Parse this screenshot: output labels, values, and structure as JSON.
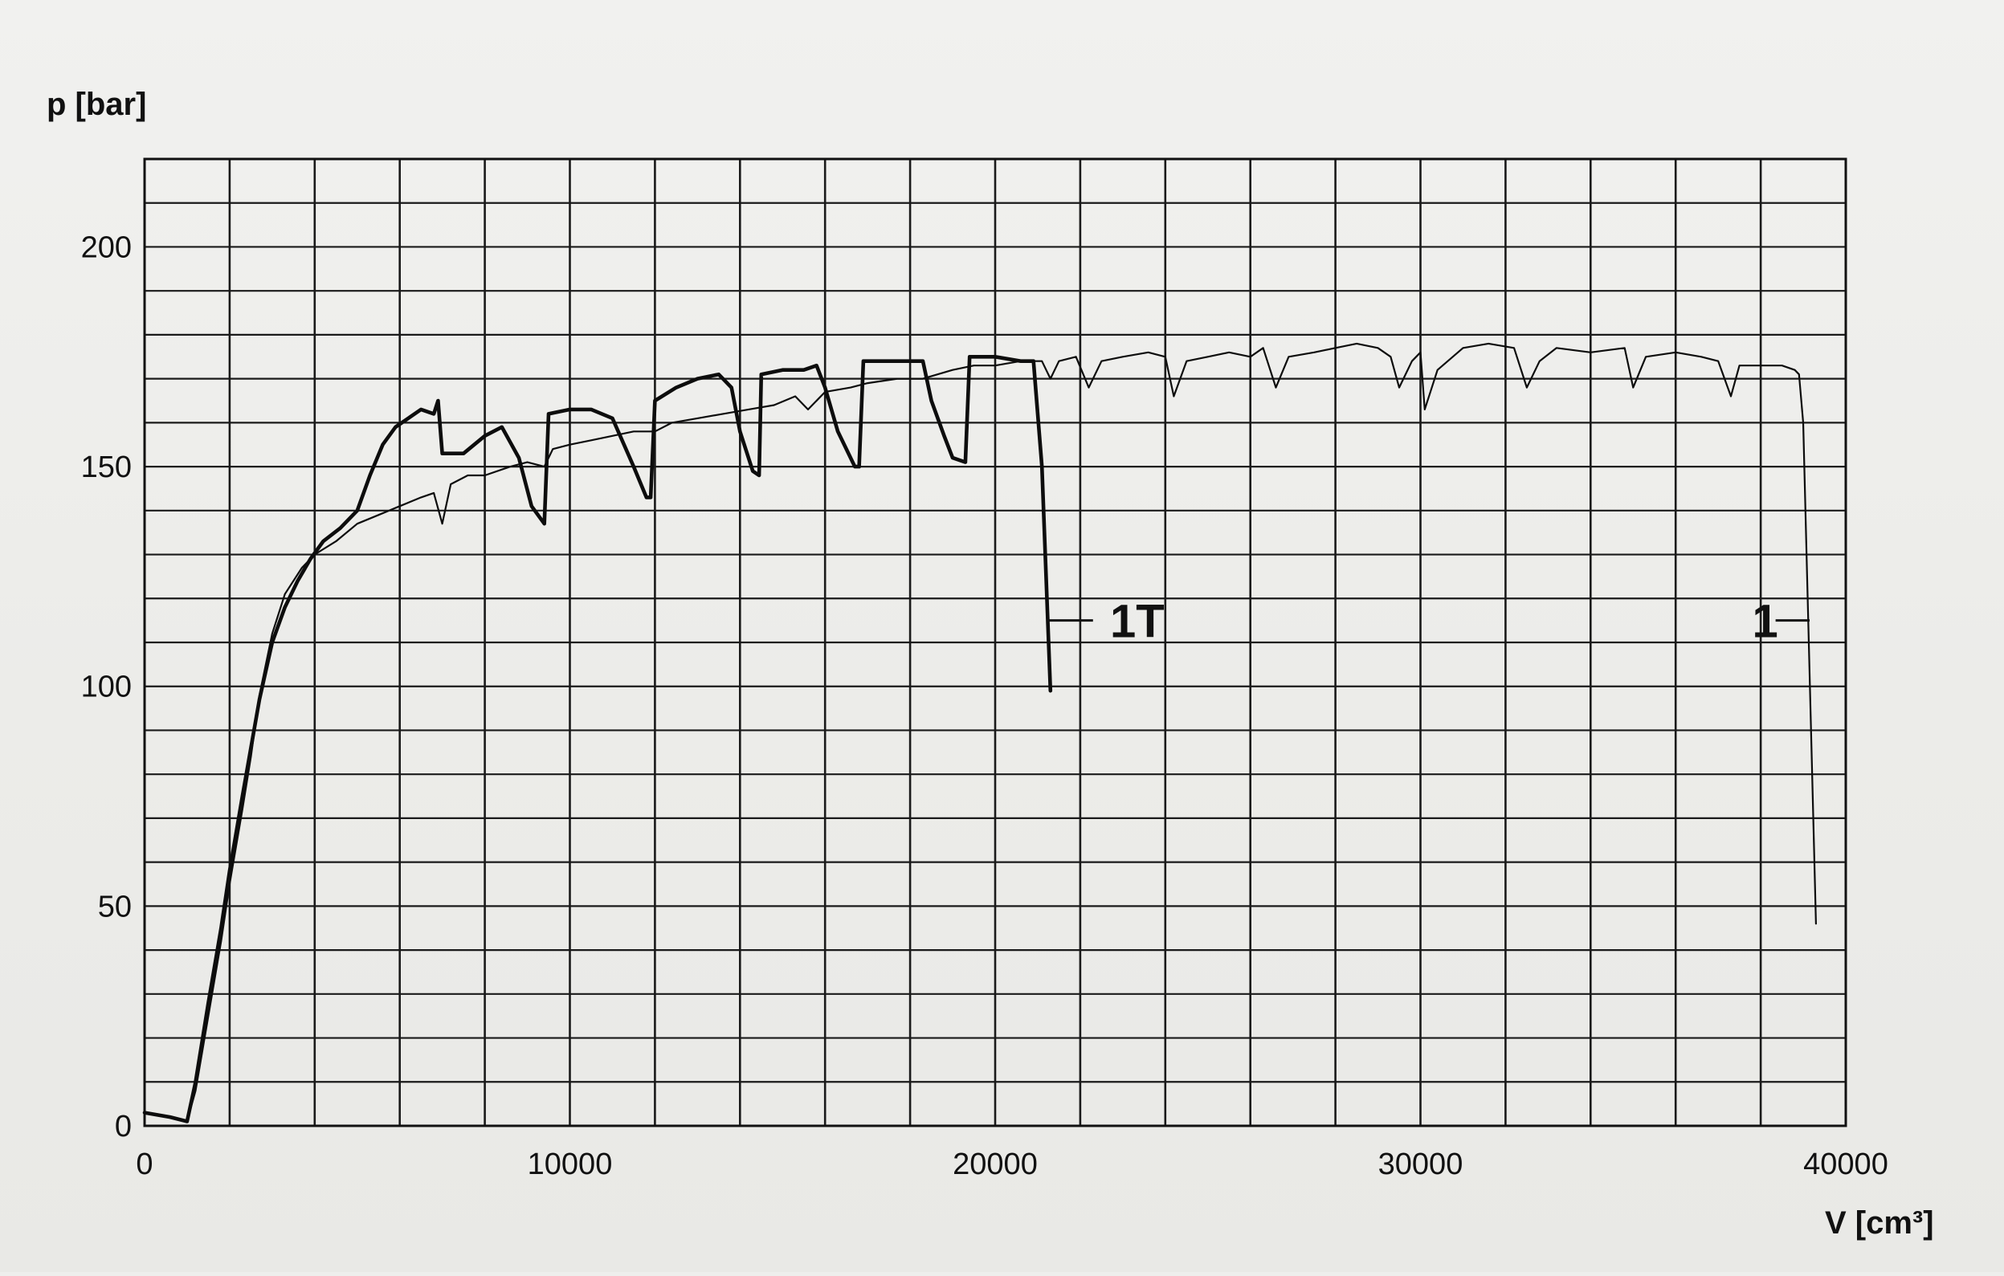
{
  "chart_data": {
    "type": "line",
    "title": "",
    "xlabel": "V [cm³]",
    "ylabel": "p [bar]",
    "xlim": [
      0,
      40000
    ],
    "ylim": [
      0,
      220
    ],
    "xticks": [
      0,
      10000,
      20000,
      30000,
      40000
    ],
    "yticks": [
      0,
      50,
      100,
      150,
      200
    ],
    "grid": true,
    "series": [
      {
        "name": "1T",
        "line_style": "thick",
        "points": [
          [
            0,
            3
          ],
          [
            600,
            2
          ],
          [
            1000,
            1
          ],
          [
            1200,
            10
          ],
          [
            1500,
            28
          ],
          [
            1800,
            45
          ],
          [
            2000,
            58
          ],
          [
            2300,
            75
          ],
          [
            2500,
            86
          ],
          [
            2700,
            97
          ],
          [
            3000,
            110
          ],
          [
            3300,
            118
          ],
          [
            3600,
            124
          ],
          [
            3900,
            129
          ],
          [
            4200,
            133
          ],
          [
            4600,
            136
          ],
          [
            5000,
            140
          ],
          [
            5300,
            148
          ],
          [
            5600,
            155
          ],
          [
            5900,
            159
          ],
          [
            6200,
            161
          ],
          [
            6500,
            163
          ],
          [
            6800,
            162
          ],
          [
            6900,
            165
          ],
          [
            7000,
            153
          ],
          [
            7500,
            153
          ],
          [
            8000,
            157
          ],
          [
            8400,
            159
          ],
          [
            8800,
            152
          ],
          [
            9100,
            141
          ],
          [
            9400,
            137
          ],
          [
            9500,
            162
          ],
          [
            10000,
            163
          ],
          [
            10500,
            163
          ],
          [
            11000,
            161
          ],
          [
            11500,
            150
          ],
          [
            11800,
            143
          ],
          [
            11900,
            143
          ],
          [
            12000,
            165
          ],
          [
            12500,
            168
          ],
          [
            13000,
            170
          ],
          [
            13500,
            171
          ],
          [
            13800,
            168
          ],
          [
            14000,
            158
          ],
          [
            14300,
            149
          ],
          [
            14450,
            148
          ],
          [
            14500,
            171
          ],
          [
            15000,
            172
          ],
          [
            15500,
            172
          ],
          [
            15800,
            173
          ],
          [
            16000,
            168
          ],
          [
            16300,
            158
          ],
          [
            16700,
            150
          ],
          [
            16800,
            150
          ],
          [
            16900,
            174
          ],
          [
            17500,
            174
          ],
          [
            18000,
            174
          ],
          [
            18300,
            174
          ],
          [
            18500,
            165
          ],
          [
            18800,
            157
          ],
          [
            19000,
            152
          ],
          [
            19300,
            151
          ],
          [
            19400,
            175
          ],
          [
            20000,
            175
          ],
          [
            20600,
            174
          ],
          [
            20900,
            174
          ],
          [
            21100,
            150
          ],
          [
            21300,
            99
          ]
        ]
      },
      {
        "name": "1",
        "line_style": "thin",
        "points": [
          [
            0,
            3
          ],
          [
            600,
            2
          ],
          [
            1000,
            1
          ],
          [
            1200,
            8
          ],
          [
            1500,
            25
          ],
          [
            1800,
            42
          ],
          [
            2000,
            55
          ],
          [
            2300,
            72
          ],
          [
            2500,
            84
          ],
          [
            2700,
            98
          ],
          [
            3000,
            112
          ],
          [
            3300,
            121
          ],
          [
            3700,
            127
          ],
          [
            4000,
            130
          ],
          [
            4500,
            133
          ],
          [
            5000,
            137
          ],
          [
            5500,
            139
          ],
          [
            6000,
            141
          ],
          [
            6500,
            143
          ],
          [
            6800,
            144
          ],
          [
            7000,
            137
          ],
          [
            7200,
            146
          ],
          [
            7600,
            148
          ],
          [
            8000,
            148
          ],
          [
            8600,
            150
          ],
          [
            9000,
            151
          ],
          [
            9400,
            150
          ],
          [
            9600,
            154
          ],
          [
            10000,
            155
          ],
          [
            10500,
            156
          ],
          [
            11000,
            157
          ],
          [
            11500,
            158
          ],
          [
            12000,
            158
          ],
          [
            12400,
            160
          ],
          [
            13000,
            161
          ],
          [
            13600,
            162
          ],
          [
            14200,
            163
          ],
          [
            14800,
            164
          ],
          [
            15300,
            166
          ],
          [
            15600,
            163
          ],
          [
            16000,
            167
          ],
          [
            16600,
            168
          ],
          [
            17000,
            169
          ],
          [
            17700,
            170
          ],
          [
            18300,
            170
          ],
          [
            19000,
            172
          ],
          [
            19500,
            173
          ],
          [
            20000,
            173
          ],
          [
            20600,
            174
          ],
          [
            21100,
            174
          ],
          [
            21300,
            170
          ],
          [
            21500,
            174
          ],
          [
            21900,
            175
          ],
          [
            22200,
            168
          ],
          [
            22500,
            174
          ],
          [
            23000,
            175
          ],
          [
            23600,
            176
          ],
          [
            24000,
            175
          ],
          [
            24200,
            166
          ],
          [
            24500,
            174
          ],
          [
            25000,
            175
          ],
          [
            25500,
            176
          ],
          [
            26000,
            175
          ],
          [
            26300,
            177
          ],
          [
            26600,
            168
          ],
          [
            26900,
            175
          ],
          [
            27500,
            176
          ],
          [
            28000,
            177
          ],
          [
            28500,
            178
          ],
          [
            29000,
            177
          ],
          [
            29300,
            175
          ],
          [
            29500,
            168
          ],
          [
            29800,
            174
          ],
          [
            30000,
            176
          ],
          [
            30100,
            163
          ],
          [
            30400,
            172
          ],
          [
            31000,
            177
          ],
          [
            31600,
            178
          ],
          [
            32200,
            177
          ],
          [
            32500,
            168
          ],
          [
            32800,
            174
          ],
          [
            33200,
            177
          ],
          [
            34000,
            176
          ],
          [
            34800,
            177
          ],
          [
            35000,
            168
          ],
          [
            35300,
            175
          ],
          [
            36000,
            176
          ],
          [
            36600,
            175
          ],
          [
            37000,
            174
          ],
          [
            37300,
            166
          ],
          [
            37500,
            173
          ],
          [
            38000,
            173
          ],
          [
            38500,
            173
          ],
          [
            38800,
            172
          ],
          [
            38900,
            171
          ],
          [
            39000,
            160
          ],
          [
            39300,
            46
          ]
        ]
      }
    ],
    "annotations": [
      {
        "text": "1T",
        "x": 22700,
        "y": 115,
        "leader_from_x": 21200,
        "leader_to_x": 22300
      },
      {
        "text": "1",
        "x": 37800,
        "y": 115,
        "leader_from_x": 38350,
        "leader_to_x": 39150
      }
    ]
  }
}
